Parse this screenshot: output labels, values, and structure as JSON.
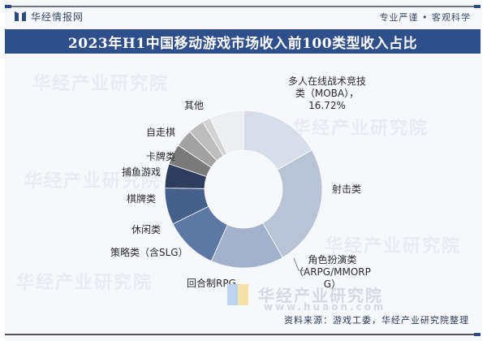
{
  "header": {
    "brand": "华经情报网",
    "slogan": "专业严谨 • 客观科学",
    "title": "2023年H1中国移动游戏市场收入前100类型收入占比"
  },
  "watermark": {
    "text": "华经产业研究院",
    "url": "www.huaon.com"
  },
  "footer": {
    "source": "资料来源：游戏工委，华经产业研究院整理"
  },
  "labels": {
    "moba_line1": "多人在线战术竞技",
    "moba_line2": "类（MOBA），",
    "moba_line3": "16.72%",
    "shooting": "射击类",
    "rpg_line1": "角色扮演类",
    "rpg_line2": "（ARPG/MMORP",
    "rpg_line3": "G）",
    "turn_rpg": "回合制RPG",
    "strategy": "策略类（含SLG）",
    "casual": "休闲类",
    "board": "棋牌类",
    "fishing": "捕鱼游戏",
    "card": "卡牌类",
    "autochess": "自走棋",
    "other": "其他"
  },
  "colors": {
    "title_bar": "#2f4f8a",
    "background": "#f6f8fc"
  },
  "chart_data": {
    "type": "pie",
    "subtype": "donut",
    "title": "2023年H1中国移动游戏市场收入前100类型收入占比",
    "categories": [
      "多人在线战术竞技类（MOBA）",
      "射击类",
      "角色扮演类（ARPG/MMORPG）",
      "回合制RPG",
      "策略类（含SLG）",
      "休闲类",
      "棋牌类",
      "捕鱼游戏",
      "卡牌类",
      "自走棋",
      "其他"
    ],
    "values": [
      16.72,
      25.0,
      15.0,
      11.0,
      7.5,
      5.0,
      4.2,
      3.6,
      3.3,
      1.7,
      6.98
    ],
    "labeled_values": {
      "多人在线战术竞技类（MOBA）": 16.72
    },
    "colors": [
      "#d7dde9",
      "#b9c3d6",
      "#a3b2cc",
      "#5e78a6",
      "#46608c",
      "#2d3d5e",
      "#7a7a7a",
      "#a2a2a2",
      "#bdbdbd",
      "#d2d2d2",
      "#eceef2"
    ],
    "start_angle": "12 o'clock",
    "direction": "clockwise",
    "legend": "none (direct labels)",
    "source": "资料来源：游戏工委，华经产业研究院整理"
  }
}
